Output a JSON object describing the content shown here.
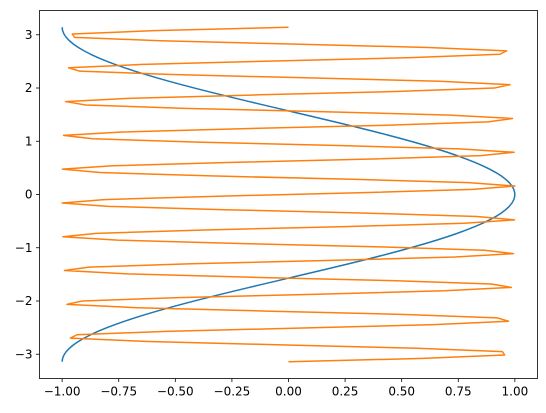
{
  "chart_data": {
    "type": "line",
    "xlim": [
      -1.1,
      1.1
    ],
    "ylim": [
      -3.4557519189487724,
      3.4557519189487724
    ],
    "x_ticks": [
      -1.0,
      -0.75,
      -0.5,
      -0.25,
      0.0,
      0.25,
      0.5,
      0.75,
      1.0
    ],
    "x_tick_labels": [
      "−1.00",
      "−0.75",
      "−0.50",
      "−0.25",
      "0.00",
      "0.25",
      "0.50",
      "0.75",
      "1.00"
    ],
    "y_ticks": [
      -3,
      -2,
      -1,
      0,
      1,
      2,
      3
    ],
    "y_tick_labels": [
      "−3",
      "−2",
      "−1",
      "0",
      "1",
      "2",
      "3"
    ],
    "grid": false,
    "legend": false,
    "series": [
      {
        "color": "#1f77b4",
        "x_expr": "cos(t)",
        "y_expr": "t",
        "t_range": [
          -3.141592653589793,
          3.141592653589793
        ],
        "samples": 100
      },
      {
        "color": "#ff7f0e",
        "x_expr": "sin(10*t)",
        "y_expr": "t",
        "t_range": [
          -3.141592653589793,
          3.141592653589793
        ],
        "samples": 100
      }
    ]
  }
}
